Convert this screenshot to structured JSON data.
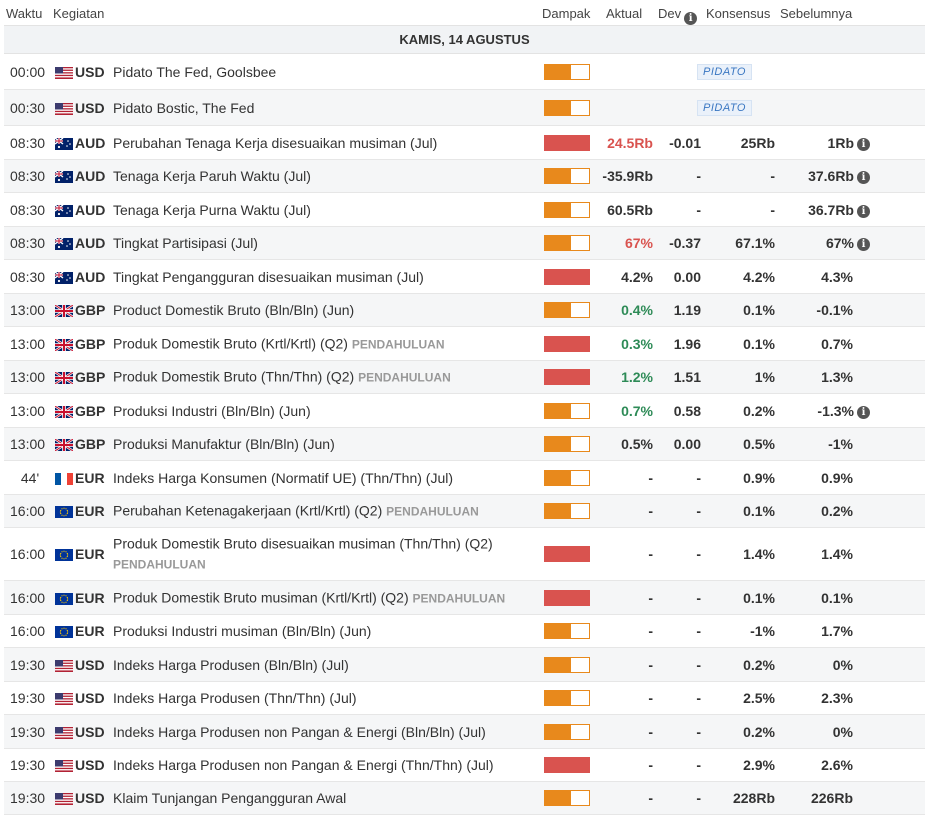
{
  "header": {
    "time": "Waktu",
    "event": "Kegiatan",
    "impact": "Dampak",
    "actual": "Aktual",
    "dev": "Dev",
    "consensus": "Konsensus",
    "previous": "Sebelumnya"
  },
  "day_label": "KAMIS, 14 AGUSTUS",
  "colors": {
    "high_impact": "#d9534f",
    "medium_impact": "#e8891c",
    "positive": "#2e8b57",
    "negative": "#d9534f",
    "speech_badge": "#3a77c2"
  },
  "rows": [
    {
      "time": "00:00",
      "currency": "USD",
      "flag": "us-flag-icon",
      "event": "Pidato The Fed, Goolsbee",
      "prelim": "",
      "impact": "medium",
      "actual": "",
      "actual_color": "",
      "dev": "",
      "consensus": "",
      "previous": "",
      "badge": "PIDATO",
      "prev_info": false
    },
    {
      "time": "00:30",
      "currency": "USD",
      "flag": "us-flag-icon",
      "event": "Pidato Bostic, The Fed",
      "prelim": "",
      "impact": "medium",
      "actual": "",
      "actual_color": "",
      "dev": "",
      "consensus": "",
      "previous": "",
      "badge": "PIDATO",
      "prev_info": false
    },
    {
      "time": "08:30",
      "currency": "AUD",
      "flag": "au-flag-icon",
      "event": "Perubahan Tenaga Kerja disesuaikan musiman (Jul)",
      "prelim": "",
      "impact": "high",
      "actual": "24.5Rb",
      "actual_color": "red",
      "dev": "-0.01",
      "consensus": "25Rb",
      "previous": "1Rb",
      "badge": "",
      "prev_info": true
    },
    {
      "time": "08:30",
      "currency": "AUD",
      "flag": "au-flag-icon",
      "event": "Tenaga Kerja Paruh Waktu (Jul)",
      "prelim": "",
      "impact": "medium",
      "actual": "-35.9Rb",
      "actual_color": "",
      "dev": "-",
      "consensus": "-",
      "previous": "37.6Rb",
      "badge": "",
      "prev_info": true
    },
    {
      "time": "08:30",
      "currency": "AUD",
      "flag": "au-flag-icon",
      "event": "Tenaga Kerja Purna Waktu (Jul)",
      "prelim": "",
      "impact": "medium",
      "actual": "60.5Rb",
      "actual_color": "",
      "dev": "-",
      "consensus": "-",
      "previous": "36.7Rb",
      "badge": "",
      "prev_info": true
    },
    {
      "time": "08:30",
      "currency": "AUD",
      "flag": "au-flag-icon",
      "event": "Tingkat Partisipasi (Jul)",
      "prelim": "",
      "impact": "medium",
      "actual": "67%",
      "actual_color": "red",
      "dev": "-0.37",
      "consensus": "67.1%",
      "previous": "67%",
      "badge": "",
      "prev_info": true
    },
    {
      "time": "08:30",
      "currency": "AUD",
      "flag": "au-flag-icon",
      "event": "Tingkat Pengangguran disesuaikan musiman (Jul)",
      "prelim": "",
      "impact": "high",
      "actual": "4.2%",
      "actual_color": "",
      "dev": "0.00",
      "consensus": "4.2%",
      "previous": "4.3%",
      "badge": "",
      "prev_info": false
    },
    {
      "time": "13:00",
      "currency": "GBP",
      "flag": "gb-flag-icon",
      "event": "Product Domestik Bruto (Bln/Bln) (Jun)",
      "prelim": "",
      "impact": "medium",
      "actual": "0.4%",
      "actual_color": "green",
      "dev": "1.19",
      "consensus": "0.1%",
      "previous": "-0.1%",
      "badge": "",
      "prev_info": false
    },
    {
      "time": "13:00",
      "currency": "GBP",
      "flag": "gb-flag-icon",
      "event": "Produk Domestik Bruto (Krtl/Krtl) (Q2)",
      "prelim": "PENDAHULUAN",
      "impact": "high",
      "actual": "0.3%",
      "actual_color": "green",
      "dev": "1.96",
      "consensus": "0.1%",
      "previous": "0.7%",
      "badge": "",
      "prev_info": false
    },
    {
      "time": "13:00",
      "currency": "GBP",
      "flag": "gb-flag-icon",
      "event": "Produk Domestik Bruto (Thn/Thn) (Q2)",
      "prelim": "PENDAHULUAN",
      "impact": "high",
      "actual": "1.2%",
      "actual_color": "green",
      "dev": "1.51",
      "consensus": "1%",
      "previous": "1.3%",
      "badge": "",
      "prev_info": false
    },
    {
      "time": "13:00",
      "currency": "GBP",
      "flag": "gb-flag-icon",
      "event": "Produksi Industri (Bln/Bln) (Jun)",
      "prelim": "",
      "impact": "medium",
      "actual": "0.7%",
      "actual_color": "green",
      "dev": "0.58",
      "consensus": "0.2%",
      "previous": "-1.3%",
      "badge": "",
      "prev_info": true
    },
    {
      "time": "13:00",
      "currency": "GBP",
      "flag": "gb-flag-icon",
      "event": "Produksi Manufaktur (Bln/Bln) (Jun)",
      "prelim": "",
      "impact": "medium",
      "actual": "0.5%",
      "actual_color": "",
      "dev": "0.00",
      "consensus": "0.5%",
      "previous": "-1%",
      "badge": "",
      "prev_info": false
    },
    {
      "time": "44'",
      "currency": "EUR",
      "flag": "fr-flag-icon",
      "event": "Indeks Harga Konsumen (Normatif UE) (Thn/Thn) (Jul)",
      "prelim": "",
      "impact": "medium",
      "actual": "-",
      "actual_color": "",
      "dev": "-",
      "consensus": "0.9%",
      "previous": "0.9%",
      "badge": "",
      "prev_info": false
    },
    {
      "time": "16:00",
      "currency": "EUR",
      "flag": "eu-flag-icon",
      "event": "Perubahan Ketenagakerjaan (Krtl/Krtl) (Q2)",
      "prelim": "PENDAHULUAN",
      "impact": "medium",
      "actual": "-",
      "actual_color": "",
      "dev": "-",
      "consensus": "0.1%",
      "previous": "0.2%",
      "badge": "",
      "prev_info": false
    },
    {
      "time": "16:00",
      "currency": "EUR",
      "flag": "eu-flag-icon",
      "event": "Produk Domestik Bruto disesuaikan musiman (Thn/Thn) (Q2)",
      "prelim": "PENDAHULUAN",
      "impact": "high",
      "actual": "-",
      "actual_color": "",
      "dev": "-",
      "consensus": "1.4%",
      "previous": "1.4%",
      "badge": "",
      "prev_info": false,
      "tall": true
    },
    {
      "time": "16:00",
      "currency": "EUR",
      "flag": "eu-flag-icon",
      "event": "Produk Domestik Bruto musiman (Krtl/Krtl) (Q2)",
      "prelim": "PENDAHULUAN",
      "impact": "high",
      "actual": "-",
      "actual_color": "",
      "dev": "-",
      "consensus": "0.1%",
      "previous": "0.1%",
      "badge": "",
      "prev_info": false
    },
    {
      "time": "16:00",
      "currency": "EUR",
      "flag": "eu-flag-icon",
      "event": "Produksi Industri musiman (Bln/Bln) (Jun)",
      "prelim": "",
      "impact": "medium",
      "actual": "-",
      "actual_color": "",
      "dev": "-",
      "consensus": "-1%",
      "previous": "1.7%",
      "badge": "",
      "prev_info": false
    },
    {
      "time": "19:30",
      "currency": "USD",
      "flag": "us-flag-icon",
      "event": "Indeks Harga Produsen (Bln/Bln) (Jul)",
      "prelim": "",
      "impact": "medium",
      "actual": "-",
      "actual_color": "",
      "dev": "-",
      "consensus": "0.2%",
      "previous": "0%",
      "badge": "",
      "prev_info": false
    },
    {
      "time": "19:30",
      "currency": "USD",
      "flag": "us-flag-icon",
      "event": "Indeks Harga Produsen (Thn/Thn) (Jul)",
      "prelim": "",
      "impact": "medium",
      "actual": "-",
      "actual_color": "",
      "dev": "-",
      "consensus": "2.5%",
      "previous": "2.3%",
      "badge": "",
      "prev_info": false
    },
    {
      "time": "19:30",
      "currency": "USD",
      "flag": "us-flag-icon",
      "event": "Indeks Harga Produsen non Pangan & Energi (Bln/Bln) (Jul)",
      "prelim": "",
      "impact": "medium",
      "actual": "-",
      "actual_color": "",
      "dev": "-",
      "consensus": "0.2%",
      "previous": "0%",
      "badge": "",
      "prev_info": false
    },
    {
      "time": "19:30",
      "currency": "USD",
      "flag": "us-flag-icon",
      "event": "Indeks Harga Produsen non Pangan & Energi (Thn/Thn) (Jul)",
      "prelim": "",
      "impact": "high",
      "actual": "-",
      "actual_color": "",
      "dev": "-",
      "consensus": "2.9%",
      "previous": "2.6%",
      "badge": "",
      "prev_info": false
    },
    {
      "time": "19:30",
      "currency": "USD",
      "flag": "us-flag-icon",
      "event": "Klaim Tunjangan Pengangguran Awal",
      "prelim": "",
      "impact": "medium",
      "actual": "-",
      "actual_color": "",
      "dev": "-",
      "consensus": "228Rb",
      "previous": "226Rb",
      "badge": "",
      "prev_info": false
    }
  ]
}
